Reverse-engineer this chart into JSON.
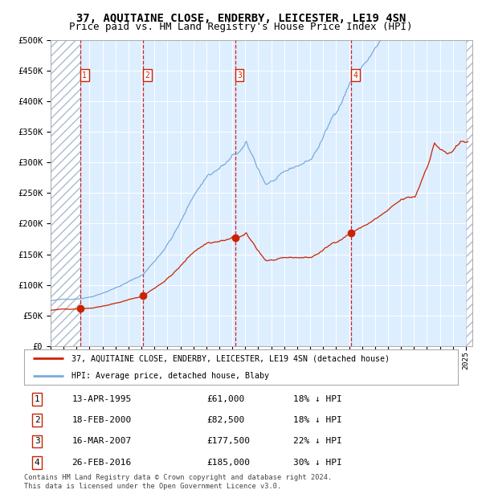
{
  "title": "37, AQUITAINE CLOSE, ENDERBY, LEICESTER, LE19 4SN",
  "subtitle": "Price paid vs. HM Land Registry's House Price Index (HPI)",
  "xlim_start": 1993.0,
  "xlim_end": 2025.5,
  "ylim": [
    0,
    500000
  ],
  "yticks": [
    0,
    50000,
    100000,
    150000,
    200000,
    250000,
    300000,
    350000,
    400000,
    450000,
    500000
  ],
  "ytick_labels": [
    "£0",
    "£50K",
    "£100K",
    "£150K",
    "£200K",
    "£250K",
    "£300K",
    "£350K",
    "£400K",
    "£450K",
    "£500K"
  ],
  "sale_dates": [
    1995.28,
    2000.13,
    2007.21,
    2016.15
  ],
  "sale_prices": [
    61000,
    82500,
    177500,
    185000
  ],
  "sale_labels": [
    "1",
    "2",
    "3",
    "4"
  ],
  "hpi_color": "#7aaadd",
  "price_color": "#cc2200",
  "vline_color": "#cc0000",
  "label_box_color": "#cc2200",
  "background_plot": "#ddeeff",
  "hatch_region_end": 1995.28,
  "hatch_region_right_start": 2025.0,
  "legend_line1": "37, AQUITAINE CLOSE, ENDERBY, LEICESTER, LE19 4SN (detached house)",
  "legend_line2": "HPI: Average price, detached house, Blaby",
  "table_entries": [
    {
      "num": "1",
      "date": "13-APR-1995",
      "price": "£61,000",
      "hpi": "18% ↓ HPI"
    },
    {
      "num": "2",
      "date": "18-FEB-2000",
      "price": "£82,500",
      "hpi": "18% ↓ HPI"
    },
    {
      "num": "3",
      "date": "16-MAR-2007",
      "price": "£177,500",
      "hpi": "22% ↓ HPI"
    },
    {
      "num": "4",
      "date": "26-FEB-2016",
      "price": "£185,000",
      "hpi": "30% ↓ HPI"
    }
  ],
  "footnote": "Contains HM Land Registry data © Crown copyright and database right 2024.\nThis data is licensed under the Open Government Licence v3.0.",
  "title_fontsize": 10,
  "subtitle_fontsize": 9
}
